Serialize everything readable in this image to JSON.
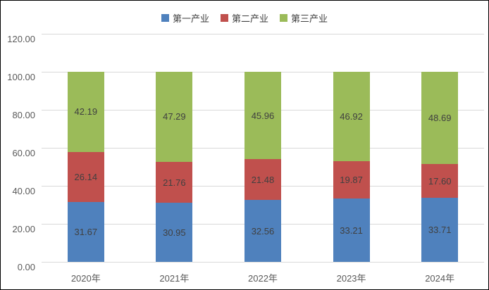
{
  "chart_data": {
    "type": "bar",
    "stacked": true,
    "title": "",
    "categories": [
      "2020年",
      "2021年",
      "2022年",
      "2023年",
      "2024年"
    ],
    "series": [
      {
        "name": "第一产业",
        "color": "#4F81BD",
        "values": [
          31.67,
          30.95,
          32.56,
          33.21,
          33.71
        ],
        "labels": [
          "31.67",
          "30.95",
          "32.56",
          "33.21",
          "33.71"
        ]
      },
      {
        "name": "第二产业",
        "color": "#C0504D",
        "values": [
          26.14,
          21.76,
          21.48,
          19.87,
          17.6
        ],
        "labels": [
          "26.14",
          "21.76",
          "21.48",
          "19.87",
          "17.60"
        ]
      },
      {
        "name": "第三产业",
        "color": "#9BBB59",
        "values": [
          42.19,
          47.29,
          45.96,
          46.92,
          48.69
        ],
        "labels": [
          "42.19",
          "47.29",
          "45.96",
          "46.92",
          "48.69"
        ]
      }
    ],
    "y_axis": {
      "min": 0,
      "max": 120,
      "step": 20,
      "tick_labels": [
        "0.00",
        "20.00",
        "40.00",
        "60.00",
        "80.00",
        "100.00",
        "120.00"
      ]
    },
    "xlabel": "",
    "ylabel": "",
    "legend_position": "top",
    "grid": true,
    "colors": {
      "gridline": "#D9D9D9",
      "axis_text": "#595959",
      "data_label": "#404040",
      "border": "#000000",
      "background": "#FFFFFF"
    }
  }
}
